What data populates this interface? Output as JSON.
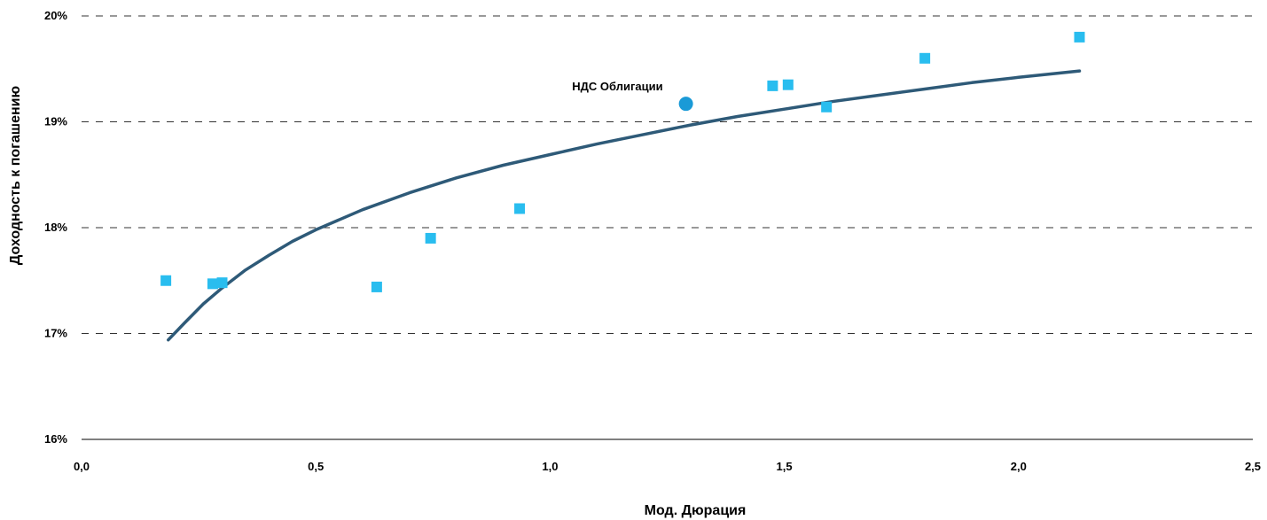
{
  "chart_data": {
    "type": "scatter",
    "xlabel": "Мод. Дюрация",
    "ylabel": "Доходность к погашению",
    "xlim": [
      0,
      2.5
    ],
    "ylim": [
      16,
      20
    ],
    "x_ticks": [
      "0,0",
      "0,5",
      "1,0",
      "1,5",
      "2,0",
      "2,5"
    ],
    "x_tick_values": [
      0,
      0.5,
      1.0,
      1.5,
      2.0,
      2.5
    ],
    "y_ticks": [
      "16%",
      "17%",
      "18%",
      "19%",
      "20%"
    ],
    "y_tick_values": [
      16,
      17,
      18,
      19,
      20
    ],
    "grid": "dashed horizontal",
    "legend": "none",
    "series": [
      {
        "marker": "square",
        "color": "#29BDEF",
        "points": [
          {
            "x": 0.18,
            "y": 17.5
          },
          {
            "x": 0.28,
            "y": 17.47
          },
          {
            "x": 0.3,
            "y": 17.48
          },
          {
            "x": 0.63,
            "y": 17.44
          },
          {
            "x": 0.745,
            "y": 17.9
          },
          {
            "x": 0.935,
            "y": 18.18
          },
          {
            "x": 1.475,
            "y": 19.34
          },
          {
            "x": 1.508,
            "y": 19.35
          },
          {
            "x": 1.59,
            "y": 19.14
          },
          {
            "x": 1.8,
            "y": 19.6
          },
          {
            "x": 2.13,
            "y": 19.8
          }
        ]
      },
      {
        "marker": "circle",
        "color": "#1A9AD7",
        "points": [
          {
            "x": 1.29,
            "y": 19.17
          }
        ]
      },
      {
        "type": "line",
        "color": "#2E5A78",
        "points": [
          {
            "x": 0.185,
            "y": 16.94
          },
          {
            "x": 0.22,
            "y": 17.1
          },
          {
            "x": 0.26,
            "y": 17.28
          },
          {
            "x": 0.3,
            "y": 17.43
          },
          {
            "x": 0.35,
            "y": 17.6
          },
          {
            "x": 0.4,
            "y": 17.74
          },
          {
            "x": 0.45,
            "y": 17.87
          },
          {
            "x": 0.5,
            "y": 17.98
          },
          {
            "x": 0.6,
            "y": 18.17
          },
          {
            "x": 0.7,
            "y": 18.33
          },
          {
            "x": 0.8,
            "y": 18.47
          },
          {
            "x": 0.9,
            "y": 18.59
          },
          {
            "x": 1.0,
            "y": 18.69
          },
          {
            "x": 1.1,
            "y": 18.79
          },
          {
            "x": 1.2,
            "y": 18.88
          },
          {
            "x": 1.3,
            "y": 18.97
          },
          {
            "x": 1.4,
            "y": 19.05
          },
          {
            "x": 1.5,
            "y": 19.12
          },
          {
            "x": 1.6,
            "y": 19.19
          },
          {
            "x": 1.7,
            "y": 19.25
          },
          {
            "x": 1.8,
            "y": 19.31
          },
          {
            "x": 1.9,
            "y": 19.37
          },
          {
            "x": 2.0,
            "y": 19.42
          },
          {
            "x": 2.13,
            "y": 19.48
          }
        ]
      }
    ],
    "annotations": [
      {
        "text": "НДС Облигации",
        "x": 1.29,
        "y": 19.17
      }
    ]
  }
}
